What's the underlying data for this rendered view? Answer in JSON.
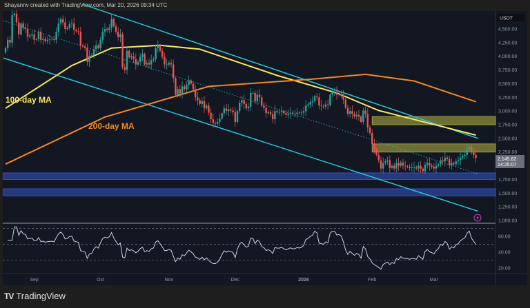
{
  "header": {
    "attribution": "Shayannv created with TradingView.com, Mar 20, 2026 09:34 UTC"
  },
  "footer": {
    "brand": "TradingView",
    "logo_text": "17"
  },
  "colors": {
    "up": "#26a69a",
    "down": "#ef5350",
    "ma100": "#f5e663",
    "ma200": "#f08a24",
    "channel": "#26c6da",
    "resistance_zone": "#8c8c3c",
    "support_zone": "#2a3f8f",
    "rsi": "#c9d3e6"
  },
  "chart_data": {
    "type": "candlestick",
    "currency": "USDT",
    "start_date": "2025-08-19",
    "interval": "1D",
    "ylim": [
      1000,
      4600
    ],
    "y_ticks": [
      "4,500.00",
      "4,250.00",
      "4,000.00",
      "3,750.00",
      "3,500.00",
      "3,250.00",
      "3,000.00",
      "2,750.00",
      "2,500.00",
      "2,250.00",
      "1,750.00",
      "1,500.00",
      "1,250.00",
      "1,000.00"
    ],
    "y_tick_values": [
      4500,
      4250,
      4000,
      3750,
      3500,
      3250,
      3000,
      2750,
      2500,
      2250,
      1750,
      1500,
      1250,
      1000
    ],
    "x_ticks": [
      {
        "label": "Sep",
        "day": 13
      },
      {
        "label": "Oct",
        "day": 43
      },
      {
        "label": "Nov",
        "day": 74
      },
      {
        "label": "Dec",
        "day": 104
      },
      {
        "label": "2026",
        "day": 135
      },
      {
        "label": "Feb",
        "day": 166
      },
      {
        "label": "Mar",
        "day": 194
      }
    ],
    "last_price": {
      "price": "2,145.62",
      "countdown": "14:25:07"
    },
    "closes": [
      4150,
      4300,
      4250,
      4750,
      4780,
      4620,
      4400,
      4600,
      4520,
      4500,
      4360,
      4380,
      4400,
      4300,
      4310,
      4450,
      4300,
      4320,
      4280,
      4300,
      4310,
      4320,
      4300,
      4450,
      4600,
      4680,
      4620,
      4500,
      4520,
      4590,
      4600,
      4480,
      4460,
      4450,
      4200,
      4180,
      4150,
      3900,
      4010,
      4020,
      4130,
      4200,
      4150,
      4300,
      4450,
      4500,
      4480,
      4520,
      4680,
      4550,
      4450,
      4350,
      4400,
      3800,
      3750,
      4100,
      3980,
      4000,
      3950,
      3850,
      3900,
      3990,
      4040,
      3850,
      3880,
      3850,
      3930,
      3950,
      4150,
      4200,
      4100,
      3990,
      3850,
      3850,
      3880,
      3850,
      3600,
      3300,
      3400,
      3320,
      3450,
      3400,
      3480,
      3560,
      3500,
      3400,
      3250,
      3200,
      3130,
      3180,
      3050,
      3100,
      2970,
      2850,
      2780,
      2770,
      2800,
      2860,
      2960,
      3050,
      3000,
      3030,
      3010,
      2980,
      2800,
      3000,
      3150,
      3200,
      3130,
      3050,
      3080,
      3330,
      3330,
      3180,
      3300,
      3250,
      3100,
      3060,
      2960,
      2980,
      2940,
      2850,
      3000,
      2980,
      2980,
      3000,
      2960,
      2930,
      2950,
      2970,
      2950,
      2950,
      2970,
      2960,
      2970,
      3000,
      3100,
      3120,
      3160,
      3180,
      3270,
      3250,
      3100,
      3090,
      3080,
      3120,
      3110,
      3300,
      3350,
      3350,
      3300,
      3310,
      3290,
      3210,
      3060,
      2950,
      3000,
      2950,
      2900,
      2930,
      2900,
      2800,
      3010,
      2950,
      2700,
      2600,
      2400,
      2300,
      2200,
      2100,
      1950,
      2050,
      2080,
      2100,
      1960,
      2000,
      1950,
      2050,
      2000,
      2060,
      2000,
      1990,
      1980,
      1960,
      1970,
      1970,
      1950,
      2000,
      1950,
      1900,
      2020,
      2050,
      2000,
      1980,
      1950,
      2000,
      2030,
      2100,
      2080,
      2150,
      2120,
      2010,
      2050,
      2030,
      2080,
      2100,
      2150,
      2180,
      2200,
      2300,
      2350,
      2250,
      2200,
      2146
    ],
    "moving_averages": [
      {
        "name": "100-day MA",
        "points": [
          [
            0,
            3050
          ],
          [
            30,
            3830
          ],
          [
            48,
            4150
          ],
          [
            70,
            4200
          ],
          [
            88,
            4130
          ],
          [
            123,
            3650
          ],
          [
            150,
            3330
          ],
          [
            169,
            3010
          ],
          [
            213,
            2560
          ]
        ]
      },
      {
        "name": "200-day MA",
        "points": [
          [
            0,
            2030
          ],
          [
            45,
            2890
          ],
          [
            92,
            3450
          ],
          [
            138,
            3580
          ],
          [
            163,
            3670
          ],
          [
            185,
            3550
          ],
          [
            213,
            3170
          ]
        ]
      }
    ],
    "channel_lines": [
      {
        "style": "solid",
        "points": [
          [
            35,
            4950
          ],
          [
            214,
            2500
          ]
        ]
      },
      {
        "style": "solid",
        "points": [
          [
            -1,
            3970
          ],
          [
            214,
            1170
          ]
        ]
      },
      {
        "style": "dotted",
        "points": [
          [
            -1,
            4650
          ],
          [
            214,
            1850
          ]
        ]
      }
    ],
    "zones": [
      {
        "kind": "resistance",
        "from_day": 166,
        "range": [
          2750,
          2900
        ]
      },
      {
        "kind": "resistance",
        "from_day": 166,
        "range": [
          2250,
          2400
        ]
      },
      {
        "kind": "support",
        "from_day": -1,
        "range": [
          1750,
          1870
        ]
      },
      {
        "kind": "support",
        "from_day": -1,
        "range": [
          1450,
          1580
        ]
      }
    ],
    "rsi": {
      "period": 14,
      "levels": [
        70,
        50,
        30
      ],
      "y_ticks": [
        "60.00",
        "40.00",
        "20.00"
      ],
      "y_tick_values": [
        60,
        40,
        20
      ]
    }
  }
}
